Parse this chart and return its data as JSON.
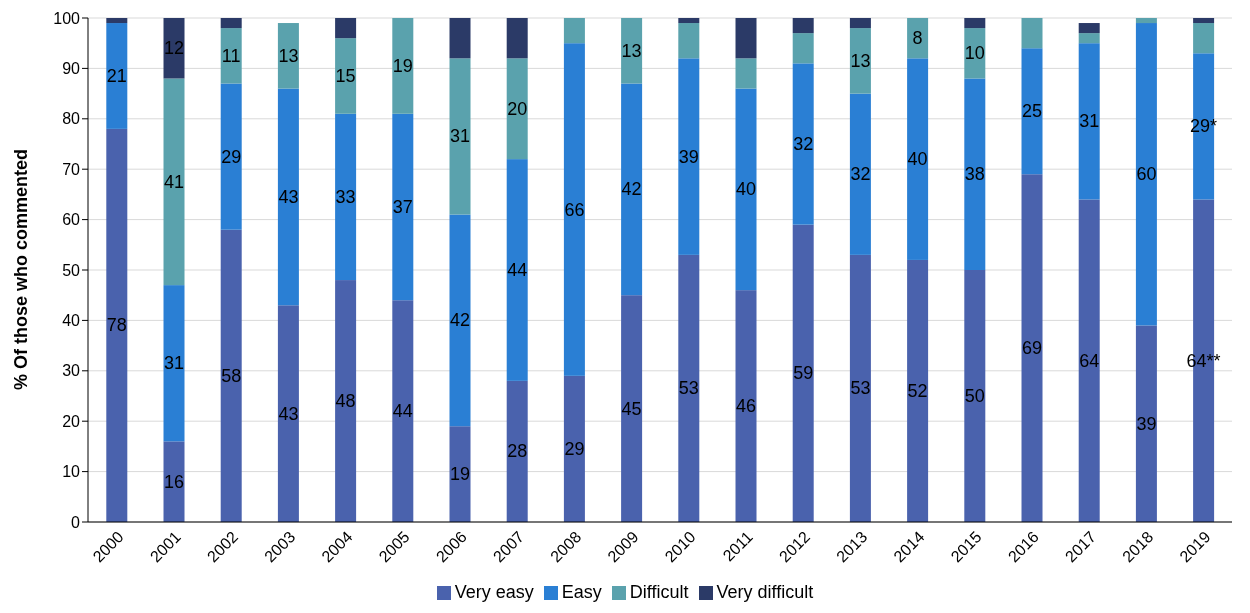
{
  "chart_data": {
    "type": "bar",
    "stacked": true,
    "ylabel": "% Of those who commented",
    "categories": [
      "2000",
      "2001",
      "2002",
      "2003",
      "2004",
      "2005",
      "2006",
      "2007",
      "2008",
      "2009",
      "2010",
      "2011",
      "2012",
      "2013",
      "2014",
      "2015",
      "2016",
      "2017",
      "2018",
      "2019"
    ],
    "series": [
      {
        "name": "Very easy",
        "color": "#4a62ad",
        "values": [
          78,
          16,
          58,
          43,
          48,
          44,
          19,
          28,
          29,
          45,
          53,
          46,
          59,
          53,
          52,
          50,
          69,
          64,
          39,
          64
        ],
        "value_labels": [
          "78",
          "16",
          "58",
          "43",
          "48",
          "44",
          "19",
          "28",
          "29",
          "45",
          "53",
          "46",
          "59",
          "53",
          "52",
          "50",
          "69",
          "64",
          "39",
          "64**"
        ]
      },
      {
        "name": "Easy",
        "color": "#2a7fd4",
        "values": [
          21,
          31,
          29,
          43,
          33,
          37,
          42,
          44,
          66,
          42,
          39,
          40,
          32,
          32,
          40,
          38,
          25,
          31,
          60,
          29
        ],
        "value_labels": [
          "21",
          "31",
          "29",
          "43",
          "33",
          "37",
          "42",
          "44",
          "66",
          "42",
          "39",
          "40",
          "32",
          "32",
          "40",
          "38",
          "25",
          "31",
          "60",
          "29*"
        ]
      },
      {
        "name": "Difficult",
        "color": "#5aa2ad",
        "values": [
          0,
          41,
          11,
          13,
          15,
          19,
          31,
          20,
          5,
          13,
          7,
          6,
          6,
          13,
          8,
          10,
          6,
          2,
          1,
          6
        ],
        "value_labels": [
          null,
          "41",
          "11",
          "13",
          "15",
          "19",
          "31",
          "20",
          null,
          "13",
          null,
          null,
          null,
          "13",
          "8",
          "10",
          null,
          null,
          null,
          null
        ]
      },
      {
        "name": "Very difficult",
        "color": "#2b3a67",
        "values": [
          1,
          12,
          2,
          0,
          4,
          0,
          8,
          8,
          0,
          0,
          1,
          8,
          3,
          2,
          0,
          2,
          0,
          2,
          0,
          1
        ],
        "value_labels": [
          null,
          "12",
          null,
          null,
          null,
          null,
          null,
          null,
          null,
          null,
          null,
          null,
          null,
          null,
          null,
          null,
          null,
          null,
          null,
          null
        ]
      }
    ],
    "ylim": [
      0,
      100
    ],
    "yticks": [
      0,
      10,
      20,
      30,
      40,
      50,
      60,
      70,
      80,
      90,
      100
    ],
    "grid": "y",
    "legend": "bottom"
  }
}
